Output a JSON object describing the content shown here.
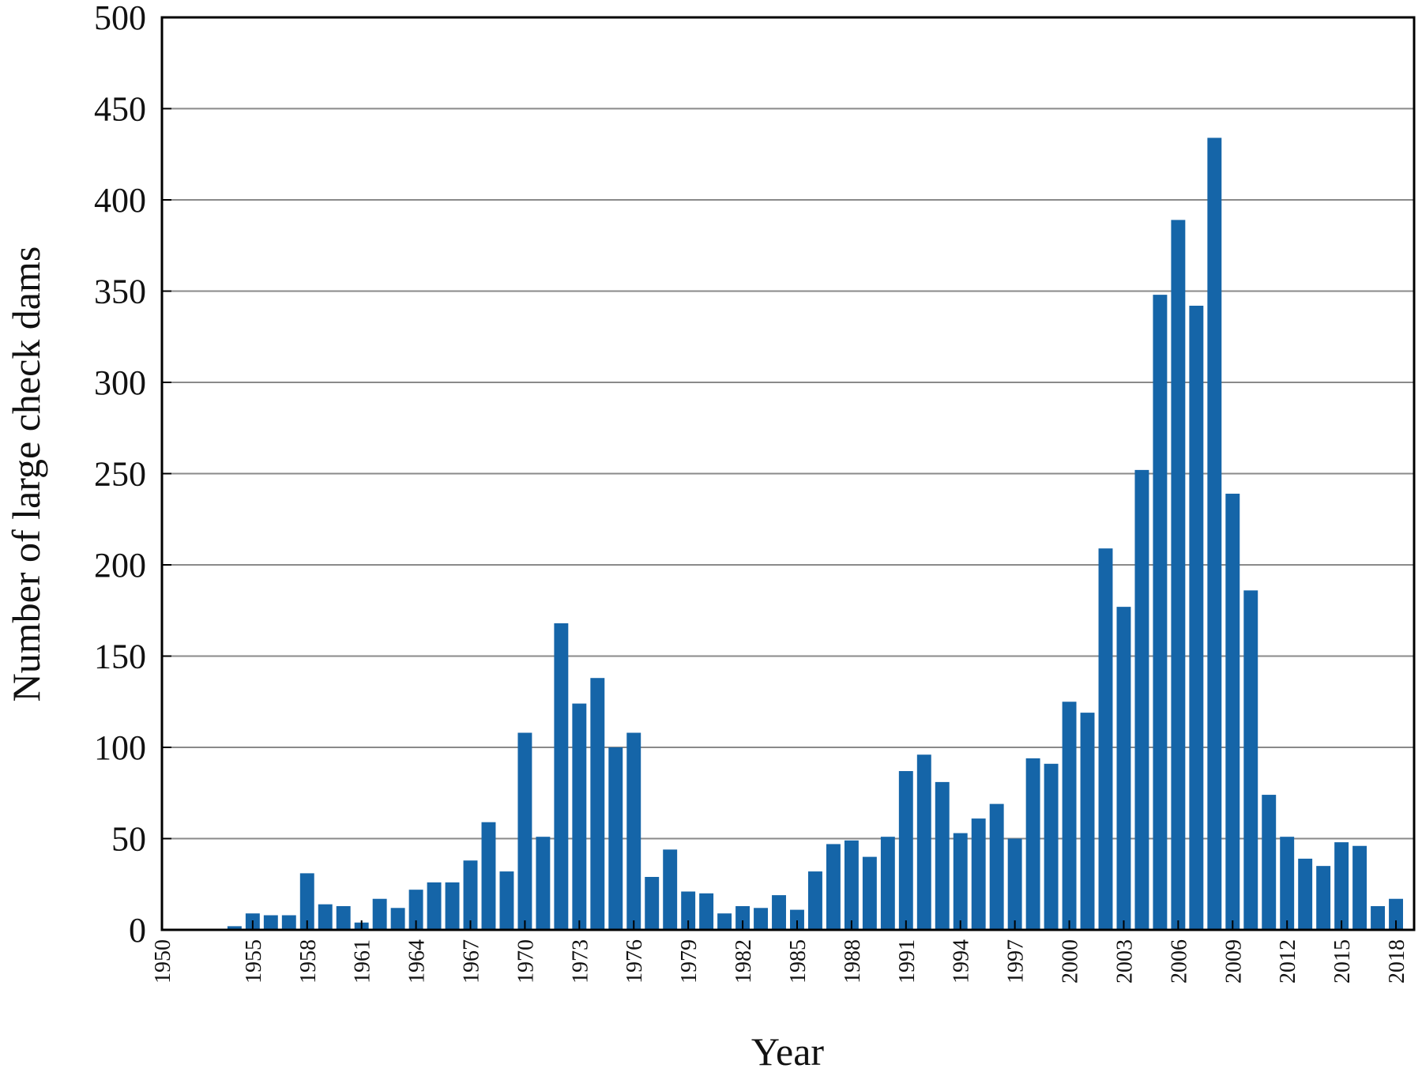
{
  "chart_data": {
    "type": "bar",
    "xlabel": "Year",
    "ylabel": "Number of large check dams",
    "ylim": [
      0,
      500
    ],
    "xlim": [
      1950,
      2019
    ],
    "grid": true,
    "bar_color": "#1565a8",
    "x_ticks": [
      "1950",
      "1955",
      "1958",
      "1961",
      "1964",
      "1967",
      "1970",
      "1973",
      "1976",
      "1979",
      "1982",
      "1985",
      "1988",
      "1991",
      "1994",
      "1997",
      "2000",
      "2003",
      "2006",
      "2009",
      "2012",
      "2015",
      "2018"
    ],
    "y_ticks": [
      "0",
      "50",
      "100",
      "150",
      "200",
      "250",
      "300",
      "350",
      "400",
      "450",
      "500"
    ],
    "categories": [
      1954,
      1955,
      1956,
      1957,
      1958,
      1959,
      1960,
      1961,
      1962,
      1963,
      1964,
      1965,
      1966,
      1967,
      1968,
      1969,
      1970,
      1971,
      1972,
      1973,
      1974,
      1975,
      1976,
      1977,
      1978,
      1979,
      1980,
      1981,
      1982,
      1983,
      1984,
      1985,
      1986,
      1987,
      1988,
      1989,
      1990,
      1991,
      1992,
      1993,
      1994,
      1995,
      1996,
      1997,
      1998,
      1999,
      2000,
      2001,
      2002,
      2003,
      2004,
      2005,
      2006,
      2007,
      2008,
      2009,
      2010,
      2011,
      2012,
      2013,
      2014,
      2015,
      2016,
      2017,
      2018
    ],
    "values": [
      2,
      9,
      8,
      8,
      31,
      14,
      13,
      4,
      17,
      12,
      22,
      26,
      26,
      38,
      59,
      32,
      108,
      51,
      168,
      124,
      138,
      100,
      108,
      29,
      44,
      21,
      20,
      9,
      13,
      12,
      19,
      11,
      32,
      47,
      49,
      40,
      51,
      87,
      96,
      81,
      53,
      61,
      69,
      50,
      94,
      91,
      125,
      119,
      209,
      177,
      252,
      348,
      389,
      342,
      434,
      239,
      186,
      74,
      51,
      39,
      35,
      48,
      46,
      13,
      17
    ]
  }
}
